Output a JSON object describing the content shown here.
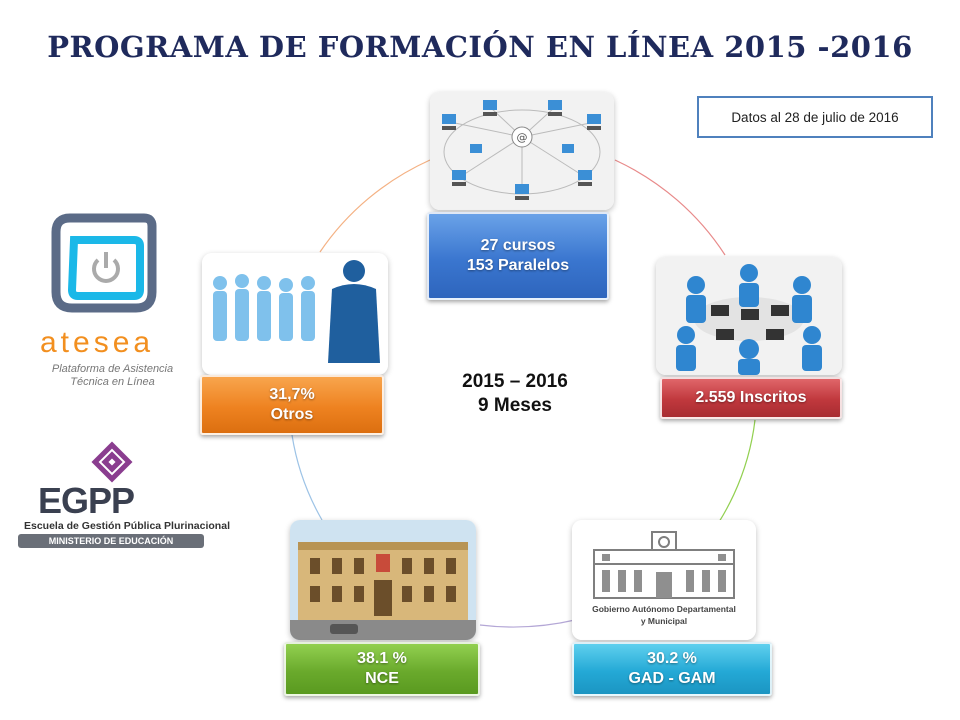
{
  "title": "PROGRAMA DE FORMACIÓN EN LÍNEA 2015 -2016",
  "note": "Datos al 28 de julio de 2016",
  "center": {
    "line1": "2015 – 2016",
    "line2": "9 Meses"
  },
  "nodes": {
    "courses": {
      "line1": "27 cursos",
      "line2": "153 Paralelos",
      "color": "#3a76cf"
    },
    "enrolled": {
      "line1": "2.559 Inscritos",
      "color": "#c0383d"
    },
    "gad": {
      "line1": "30.2 %",
      "line2": "GAD - GAM",
      "color": "#24a9d6"
    },
    "nce": {
      "line1": "38.1 %",
      "line2": "NCE",
      "color": "#6aaa2c"
    },
    "others": {
      "line1": "31,7%",
      "line2": "Otros",
      "color": "#ee8220"
    }
  },
  "gad_image_caption": {
    "line1": "Gobierno Autónomo Departamental",
    "line2": "y Municipal"
  },
  "logos": {
    "atesea": {
      "name": "atesea",
      "tagline_1": "Plataforma de Asistencia",
      "tagline_2": "Técnica en Línea",
      "icon": "power-icon"
    },
    "egpp": {
      "name": "EGPP",
      "subtitle": "Escuela de Gestión Pública Plurinacional",
      "ministry": "MINISTERIO DE EDUCACIÓN",
      "icon": "diamond-knot-icon"
    }
  }
}
